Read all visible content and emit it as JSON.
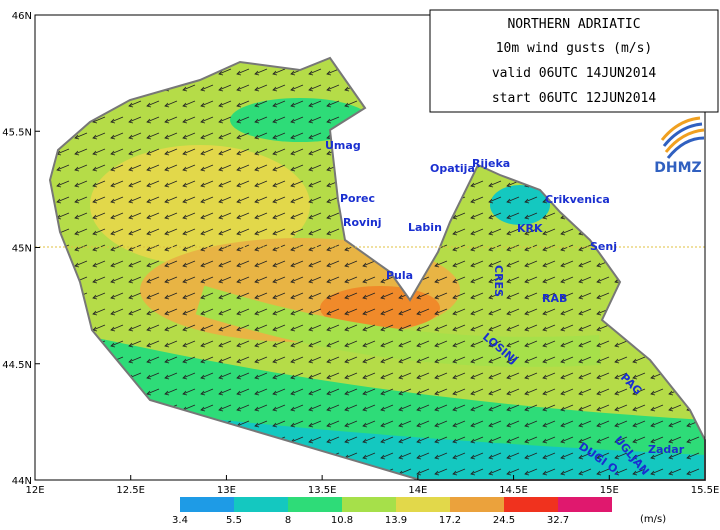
{
  "map": {
    "title": [
      "NORTHERN ADRIATIC",
      "10m wind gusts (m/s)",
      "valid 06UTC 14JUN2014",
      "start 06UTC 12JUN2014"
    ],
    "x_axis": {
      "lim": [
        12,
        15.5
      ],
      "ticks": [
        {
          "value": 12,
          "label": "12E"
        },
        {
          "value": 12.5,
          "label": "12.5E"
        },
        {
          "value": 13,
          "label": "13E"
        },
        {
          "value": 13.5,
          "label": "13.5E"
        },
        {
          "value": 14,
          "label": "14E"
        },
        {
          "value": 14.5,
          "label": "14.5E"
        },
        {
          "value": 15,
          "label": "15E"
        },
        {
          "value": 15.5,
          "label": "15.5E"
        }
      ]
    },
    "y_axis": {
      "lim": [
        44,
        46
      ],
      "ticks": [
        {
          "value": 44,
          "label": "44N"
        },
        {
          "value": 44.5,
          "label": "44.5N"
        },
        {
          "value": 45,
          "label": "45N"
        },
        {
          "value": 45.5,
          "label": "45.5N"
        },
        {
          "value": 46,
          "label": "46N"
        }
      ]
    },
    "places": [
      "Umag",
      "Porec",
      "Rovinj",
      "Pula",
      "Labin",
      "Opatija",
      "Rijeka",
      "Crikvenica",
      "KRK",
      "Senj",
      "CRES",
      "RAB",
      "LOSINJ",
      "PAG",
      "Zadar",
      "UGLJAN",
      "DUGI O."
    ],
    "colorbar": {
      "levels": [
        3.4,
        5.5,
        8,
        10.8,
        13.9,
        17.2,
        24.5,
        32.7
      ],
      "colors": [
        "#1e9be6",
        "#14c8c0",
        "#2edc78",
        "#a6e04a",
        "#e2d84a",
        "#eba23c",
        "#f0321e",
        "#e0186e"
      ],
      "unit": "(m/s)"
    },
    "logo": "DHMZ"
  }
}
